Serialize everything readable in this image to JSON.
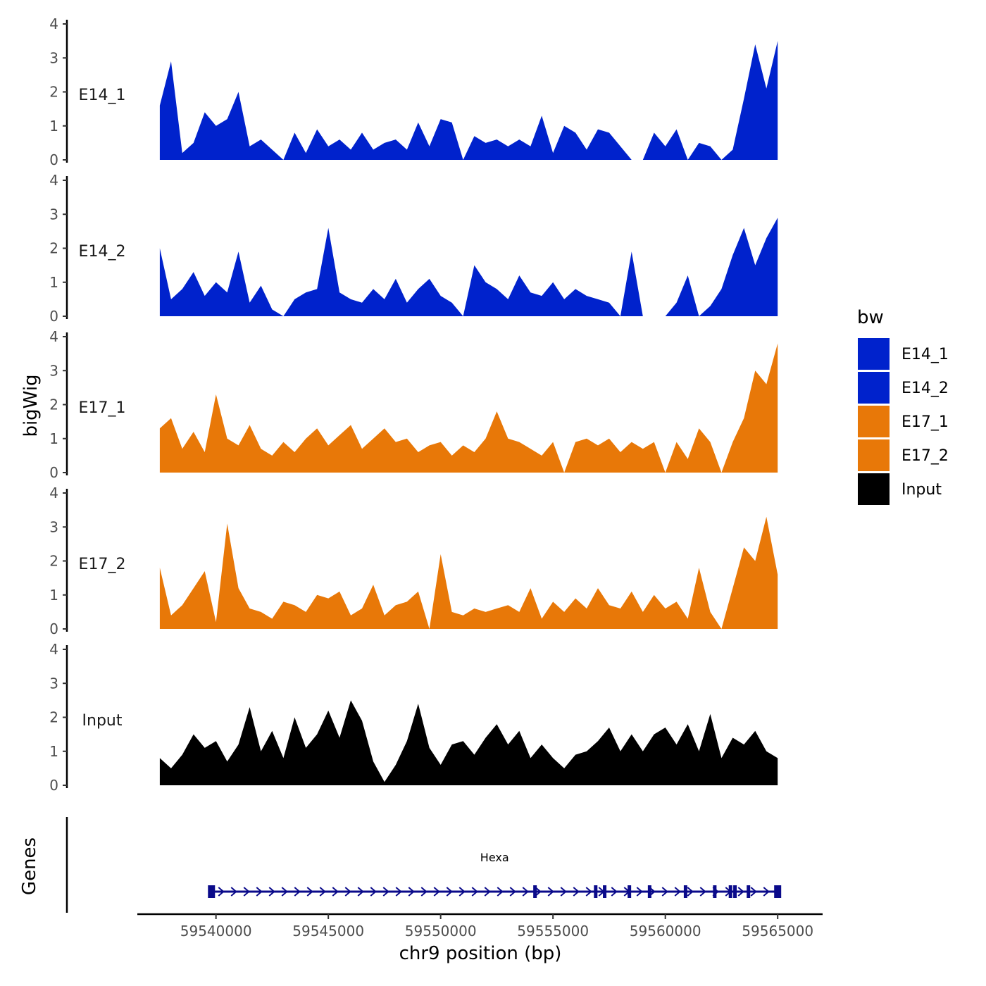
{
  "chart_data": {
    "type": "area",
    "xlabel": "chr9 position (bp)",
    "ylabel": "bigWig",
    "gene_panel_label": "Genes",
    "xlim": [
      59536500,
      59567000
    ],
    "x_ticks": [
      59540000,
      59545000,
      59550000,
      59555000,
      59560000,
      59565000
    ],
    "x_tick_labels": [
      "59540000",
      "59545000",
      "59550000",
      "59555000",
      "59560000",
      "59565000"
    ],
    "ylim": [
      0,
      4
    ],
    "y_ticks": [
      0,
      1,
      2,
      3,
      4
    ],
    "y_tick_labels": [
      "0",
      "1",
      "2",
      "3",
      "4"
    ],
    "legend": {
      "title": "bw",
      "position": "right",
      "entries": [
        {
          "label": "E14_1",
          "color": "#0022CC"
        },
        {
          "label": "E14_2",
          "color": "#0022CC"
        },
        {
          "label": "E17_1",
          "color": "#E87808"
        },
        {
          "label": "E17_2",
          "color": "#E87808"
        },
        {
          "label": "Input",
          "color": "#000000"
        }
      ]
    },
    "series": [
      {
        "name": "E14_1",
        "color": "#0022CC",
        "x": [
          59537500,
          59538000,
          59538500,
          59539000,
          59539500,
          59540000,
          59540500,
          59541000,
          59541500,
          59542000,
          59542500,
          59543000,
          59543500,
          59544000,
          59544500,
          59545000,
          59545500,
          59546000,
          59546500,
          59547000,
          59547500,
          59548000,
          59548500,
          59549000,
          59549500,
          59550000,
          59550500,
          59551000,
          59551500,
          59552000,
          59552500,
          59553000,
          59553500,
          59554000,
          59554500,
          59555000,
          59555500,
          59556000,
          59556500,
          59557000,
          59557500,
          59558000,
          59558500,
          59559000,
          59559500,
          59560000,
          59560500,
          59561000,
          59561500,
          59562000,
          59562500,
          59563000,
          59563500,
          59564000,
          59564500,
          59565000
        ],
        "values": [
          1.6,
          2.9,
          0.2,
          0.5,
          1.4,
          1.0,
          1.2,
          2.0,
          0.4,
          0.6,
          0.3,
          0.0,
          0.8,
          0.2,
          0.9,
          0.4,
          0.6,
          0.3,
          0.8,
          0.3,
          0.5,
          0.6,
          0.3,
          1.1,
          0.4,
          1.2,
          1.1,
          0.0,
          0.7,
          0.5,
          0.6,
          0.4,
          0.6,
          0.4,
          1.3,
          0.2,
          1.0,
          0.8,
          0.3,
          0.9,
          0.8,
          0.4,
          0.0,
          0.0,
          0.8,
          0.4,
          0.9,
          0.0,
          0.5,
          0.4,
          0.0,
          0.3,
          1.8,
          3.4,
          2.1,
          3.5
        ]
      },
      {
        "name": "E14_2",
        "color": "#0022CC",
        "x": [
          59537500,
          59538000,
          59538500,
          59539000,
          59539500,
          59540000,
          59540500,
          59541000,
          59541500,
          59542000,
          59542500,
          59543000,
          59543500,
          59544000,
          59544500,
          59545000,
          59545500,
          59546000,
          59546500,
          59547000,
          59547500,
          59548000,
          59548500,
          59549000,
          59549500,
          59550000,
          59550500,
          59551000,
          59551500,
          59552000,
          59552500,
          59553000,
          59553500,
          59554000,
          59554500,
          59555000,
          59555500,
          59556000,
          59556500,
          59557000,
          59557500,
          59558000,
          59558500,
          59559000,
          59559500,
          59560000,
          59560500,
          59561000,
          59561500,
          59562000,
          59562500,
          59563000,
          59563500,
          59564000,
          59564500,
          59565000
        ],
        "values": [
          2.0,
          0.5,
          0.8,
          1.3,
          0.6,
          1.0,
          0.7,
          1.9,
          0.4,
          0.9,
          0.2,
          0.0,
          0.5,
          0.7,
          0.8,
          2.6,
          0.7,
          0.5,
          0.4,
          0.8,
          0.5,
          1.1,
          0.4,
          0.8,
          1.1,
          0.6,
          0.4,
          0.0,
          1.5,
          1.0,
          0.8,
          0.5,
          1.2,
          0.7,
          0.6,
          1.0,
          0.5,
          0.8,
          0.6,
          0.5,
          0.4,
          0.0,
          1.9,
          0.0,
          0.0,
          0.0,
          0.4,
          1.2,
          0.0,
          0.3,
          0.8,
          1.8,
          2.6,
          1.5,
          2.3,
          2.9
        ]
      },
      {
        "name": "E17_1",
        "color": "#E87808",
        "x": [
          59537500,
          59538000,
          59538500,
          59539000,
          59539500,
          59540000,
          59540500,
          59541000,
          59541500,
          59542000,
          59542500,
          59543000,
          59543500,
          59544000,
          59544500,
          59545000,
          59545500,
          59546000,
          59546500,
          59547000,
          59547500,
          59548000,
          59548500,
          59549000,
          59549500,
          59550000,
          59550500,
          59551000,
          59551500,
          59552000,
          59552500,
          59553000,
          59553500,
          59554000,
          59554500,
          59555000,
          59555500,
          59556000,
          59556500,
          59557000,
          59557500,
          59558000,
          59558500,
          59559000,
          59559500,
          59560000,
          59560500,
          59561000,
          59561500,
          59562000,
          59562500,
          59563000,
          59563500,
          59564000,
          59564500,
          59565000
        ],
        "values": [
          1.3,
          1.6,
          0.7,
          1.2,
          0.6,
          2.3,
          1.0,
          0.8,
          1.4,
          0.7,
          0.5,
          0.9,
          0.6,
          1.0,
          1.3,
          0.8,
          1.1,
          1.4,
          0.7,
          1.0,
          1.3,
          0.9,
          1.0,
          0.6,
          0.8,
          0.9,
          0.5,
          0.8,
          0.6,
          1.0,
          1.8,
          1.0,
          0.9,
          0.7,
          0.5,
          0.9,
          0.0,
          0.9,
          1.0,
          0.8,
          1.0,
          0.6,
          0.9,
          0.7,
          0.9,
          0.0,
          0.9,
          0.4,
          1.3,
          0.9,
          0.0,
          0.9,
          1.6,
          3.0,
          2.6,
          3.8
        ]
      },
      {
        "name": "E17_2",
        "color": "#E87808",
        "x": [
          59537500,
          59538000,
          59538500,
          59539000,
          59539500,
          59540000,
          59540500,
          59541000,
          59541500,
          59542000,
          59542500,
          59543000,
          59543500,
          59544000,
          59544500,
          59545000,
          59545500,
          59546000,
          59546500,
          59547000,
          59547500,
          59548000,
          59548500,
          59549000,
          59549500,
          59550000,
          59550500,
          59551000,
          59551500,
          59552000,
          59552500,
          59553000,
          59553500,
          59554000,
          59554500,
          59555000,
          59555500,
          59556000,
          59556500,
          59557000,
          59557500,
          59558000,
          59558500,
          59559000,
          59559500,
          59560000,
          59560500,
          59561000,
          59561500,
          59562000,
          59562500,
          59563000,
          59563500,
          59564000,
          59564500,
          59565000
        ],
        "values": [
          1.8,
          0.4,
          0.7,
          1.2,
          1.7,
          0.2,
          3.1,
          1.2,
          0.6,
          0.5,
          0.3,
          0.8,
          0.7,
          0.5,
          1.0,
          0.9,
          1.1,
          0.4,
          0.6,
          1.3,
          0.4,
          0.7,
          0.8,
          1.1,
          0.0,
          2.2,
          0.5,
          0.4,
          0.6,
          0.5,
          0.6,
          0.7,
          0.5,
          1.2,
          0.3,
          0.8,
          0.5,
          0.9,
          0.6,
          1.2,
          0.7,
          0.6,
          1.1,
          0.5,
          1.0,
          0.6,
          0.8,
          0.3,
          1.8,
          0.5,
          0.0,
          1.2,
          2.4,
          2.0,
          3.3,
          1.6
        ]
      },
      {
        "name": "Input",
        "color": "#000000",
        "x": [
          59537500,
          59538000,
          59538500,
          59539000,
          59539500,
          59540000,
          59540500,
          59541000,
          59541500,
          59542000,
          59542500,
          59543000,
          59543500,
          59544000,
          59544500,
          59545000,
          59545500,
          59546000,
          59546500,
          59547000,
          59547500,
          59548000,
          59548500,
          59549000,
          59549500,
          59550000,
          59550500,
          59551000,
          59551500,
          59552000,
          59552500,
          59553000,
          59553500,
          59554000,
          59554500,
          59555000,
          59555500,
          59556000,
          59556500,
          59557000,
          59557500,
          59558000,
          59558500,
          59559000,
          59559500,
          59560000,
          59560500,
          59561000,
          59561500,
          59562000,
          59562500,
          59563000,
          59563500,
          59564000,
          59564500,
          59565000
        ],
        "values": [
          0.8,
          0.5,
          0.9,
          1.5,
          1.1,
          1.3,
          0.7,
          1.2,
          2.3,
          1.0,
          1.6,
          0.8,
          2.0,
          1.1,
          1.5,
          2.2,
          1.4,
          2.5,
          1.9,
          0.7,
          0.1,
          0.6,
          1.3,
          2.4,
          1.1,
          0.6,
          1.2,
          1.3,
          0.9,
          1.4,
          1.8,
          1.2,
          1.6,
          0.8,
          1.2,
          0.8,
          0.5,
          0.9,
          1.0,
          1.3,
          1.7,
          1.0,
          1.5,
          1.0,
          1.5,
          1.7,
          1.2,
          1.8,
          1.0,
          2.1,
          0.8,
          1.4,
          1.2,
          1.6,
          1.0,
          0.8
        ]
      }
    ],
    "gene": {
      "name": "Hexa",
      "strand": "+",
      "start": 59539800,
      "end": 59565000,
      "exons": [
        59539800,
        59554200,
        59556900,
        59557300,
        59558400,
        59559300,
        59560900,
        59562200,
        59562900,
        59563100,
        59563700,
        59565000
      ]
    }
  }
}
